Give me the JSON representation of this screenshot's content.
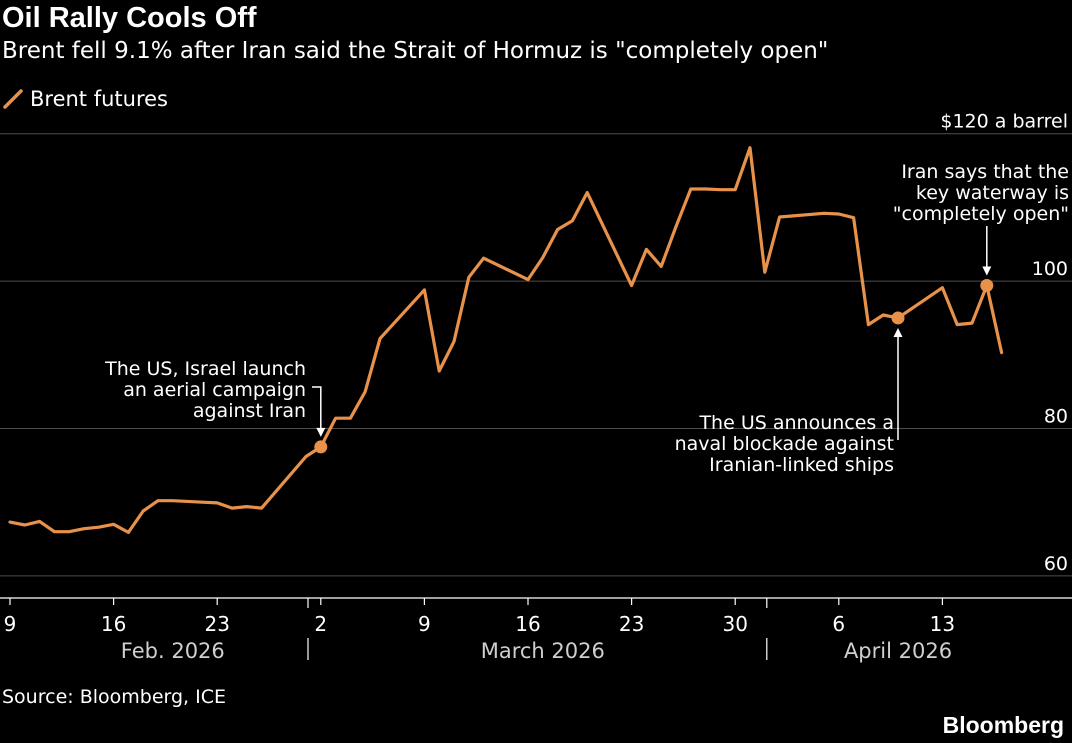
{
  "header": {
    "title": "Oil Rally Cools Off",
    "subtitle": "Brent fell 9.1% after Iran said the Strait of Hormuz is \"completely open\""
  },
  "legend": {
    "label": "Brent futures"
  },
  "footer": {
    "source": "Source: Bloomberg, ICE",
    "brand": "Bloomberg"
  },
  "colors": {
    "line": "#e8914a",
    "background": "#000000",
    "grid": "#4d4d4d",
    "text": "#ffffff"
  },
  "chart_data": {
    "type": "line",
    "x_label": "",
    "y_label": "",
    "ylim": [
      57,
      122
    ],
    "grid": true,
    "y_ticks": [
      {
        "value": 60,
        "label": "60"
      },
      {
        "value": 80,
        "label": "80"
      },
      {
        "value": 100,
        "label": "100"
      },
      {
        "value": 120,
        "label": "$120 a barrel"
      }
    ],
    "x_ticks": [
      {
        "date": "2026-02-09",
        "label": "9"
      },
      {
        "date": "2026-02-16",
        "label": "16"
      },
      {
        "date": "2026-02-23",
        "label": "23"
      },
      {
        "date": "2026-03-02",
        "label": "2"
      },
      {
        "date": "2026-03-09",
        "label": "9"
      },
      {
        "date": "2026-03-16",
        "label": "16"
      },
      {
        "date": "2026-03-23",
        "label": "23"
      },
      {
        "date": "2026-03-30",
        "label": "30"
      },
      {
        "date": "2026-04-06",
        "label": "6"
      },
      {
        "date": "2026-04-13",
        "label": "13"
      }
    ],
    "months": [
      {
        "label": "Feb. 2026",
        "center": "2026-02-20"
      },
      {
        "label": "March 2026",
        "center": "2026-03-17"
      },
      {
        "label": "April 2026",
        "center": "2026-04-10"
      }
    ],
    "month_separators": [
      "2026-03-01",
      "2026-04-01"
    ],
    "series": [
      {
        "name": "Brent futures",
        "x": [
          "2026-02-09",
          "2026-02-10",
          "2026-02-11",
          "2026-02-12",
          "2026-02-13",
          "2026-02-14",
          "2026-02-15",
          "2026-02-16",
          "2026-02-17",
          "2026-02-18",
          "2026-02-19",
          "2026-02-20",
          "2026-02-22",
          "2026-02-23",
          "2026-02-24",
          "2026-02-25",
          "2026-02-26",
          "2026-03-01",
          "2026-03-02",
          "2026-03-03",
          "2026-03-04",
          "2026-03-05",
          "2026-03-06",
          "2026-03-09",
          "2026-03-10",
          "2026-03-11",
          "2026-03-12",
          "2026-03-13",
          "2026-03-16",
          "2026-03-17",
          "2026-03-18",
          "2026-03-19",
          "2026-03-20",
          "2026-03-23",
          "2026-03-24",
          "2026-03-25",
          "2026-03-26",
          "2026-03-27",
          "2026-03-28",
          "2026-03-29",
          "2026-03-30",
          "2026-03-31",
          "2026-04-01",
          "2026-04-02",
          "2026-04-05",
          "2026-04-06",
          "2026-04-07",
          "2026-04-08",
          "2026-04-09",
          "2026-04-10",
          "2026-04-13",
          "2026-04-14",
          "2026-04-15",
          "2026-04-16",
          "2026-04-17"
        ],
        "values": [
          67.3,
          66.9,
          67.4,
          66.0,
          66.0,
          66.4,
          66.6,
          67.0,
          65.9,
          68.8,
          70.2,
          70.2,
          70.0,
          69.9,
          69.2,
          69.4,
          69.2,
          76.2,
          77.5,
          81.4,
          81.4,
          85.0,
          92.2,
          98.8,
          87.8,
          91.8,
          100.5,
          103.1,
          100.2,
          103.2,
          107.0,
          108.2,
          112.0,
          99.4,
          104.3,
          102.0,
          107.4,
          112.5,
          112.5,
          112.4,
          112.4,
          118.1,
          101.2,
          108.7,
          109.2,
          109.1,
          108.6,
          94.1,
          95.4,
          95.0,
          99.1,
          94.1,
          94.3,
          99.4,
          90.3
        ]
      }
    ],
    "annotations": [
      {
        "date": "2026-03-02",
        "value": 77.5,
        "lines": [
          "The US, Israel launch",
          "an aerial campaign",
          "against Iran"
        ]
      },
      {
        "date": "2026-04-10",
        "value": 95.0,
        "lines": [
          "The US announces a",
          "naval blockade against",
          "Iranian-linked ships"
        ]
      },
      {
        "date": "2026-04-16",
        "value": 99.4,
        "lines": [
          "Iran says that the",
          "key waterway is",
          "\"completely open\""
        ]
      }
    ]
  }
}
